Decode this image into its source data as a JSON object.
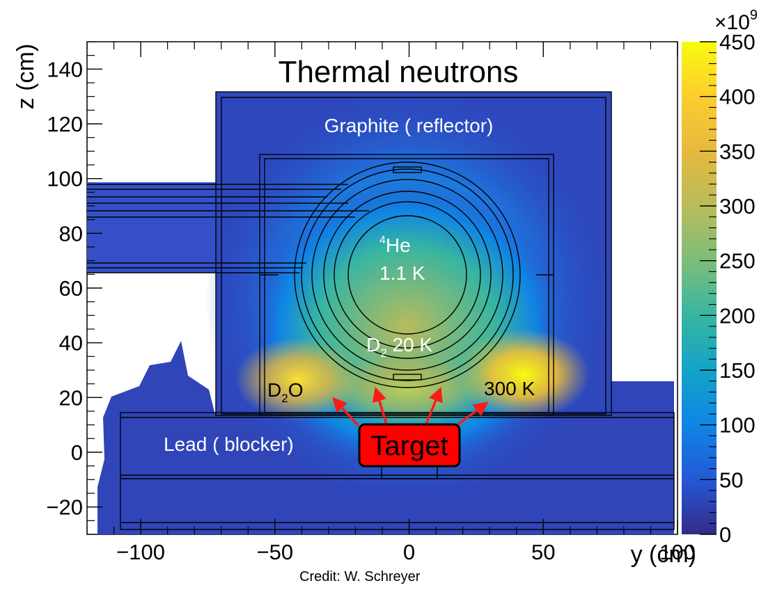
{
  "chart_data": {
    "type": "heatmap",
    "title": "Thermal neutrons",
    "xlabel": "y (cm)",
    "ylabel": "z (cm)",
    "xlim": [
      -120,
      100
    ],
    "ylim": [
      -30,
      150
    ],
    "x_ticks": [
      -100,
      -50,
      0,
      50,
      100
    ],
    "y_ticks": [
      -20,
      0,
      20,
      40,
      60,
      80,
      100,
      120,
      140
    ],
    "colorbar": {
      "min": 0,
      "max": 450,
      "multiplier": "×10",
      "multiplier_exp": "9",
      "ticks": [
        0,
        50,
        100,
        150,
        200,
        250,
        300,
        350,
        400,
        450
      ],
      "colormap": [
        "#352a87",
        "#2558d6",
        "#0f85e4",
        "#12a3c8",
        "#38b5a1",
        "#7dbd7a",
        "#b9bc5a",
        "#e6b93e",
        "#fccd2e",
        "#f9fb0e"
      ]
    },
    "hotspots": [
      {
        "y": -42,
        "z": 25,
        "value": 380
      },
      {
        "y": 42,
        "z": 28,
        "value": 450
      },
      {
        "y": 0,
        "z": 40,
        "value": 340
      },
      {
        "y": 0,
        "z": 70,
        "value": 200
      }
    ],
    "annotations": {
      "graphite": "Graphite ( reflector)",
      "he_sup": "4",
      "he": "He",
      "he_temp": "1.1 K",
      "d2": "D",
      "d2_sub": "2",
      "d2_temp": " 20 K",
      "d2o": "D",
      "d2o_sub": "2",
      "d2o_tail": "O",
      "k300": "300 K",
      "lead": "Lead ( blocker)",
      "target": "Target"
    }
  },
  "credit": "Credit: W. Schreyer"
}
